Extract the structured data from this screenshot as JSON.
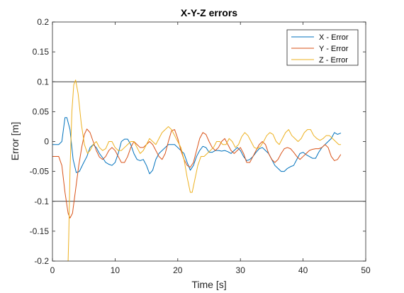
{
  "chart_data": {
    "type": "line",
    "title": "X-Y-Z errors",
    "xlabel": "Time [s]",
    "ylabel": "Error [m]",
    "xlim": [
      0,
      50
    ],
    "ylim": [
      -0.2,
      0.2
    ],
    "xticks": [
      0,
      10,
      20,
      30,
      40,
      50
    ],
    "xtick_labels": [
      "0",
      "10",
      "20",
      "30",
      "40",
      "50"
    ],
    "yticks": [
      -0.2,
      -0.15,
      -0.1,
      -0.05,
      0,
      0.05,
      0.1,
      0.15,
      0.2
    ],
    "ytick_labels": [
      "-0.2",
      "-0.15",
      "-0.1",
      "-0.05",
      "0",
      "0.05",
      "0.1",
      "0.15",
      "0.2"
    ],
    "reference_lines": [
      0.1,
      -0.1
    ],
    "grid": false,
    "legend_position": "top-right",
    "series": [
      {
        "name": "X - Error",
        "color": "#0072BD",
        "points": [
          [
            0,
            -0.005
          ],
          [
            1,
            -0.005
          ],
          [
            1.5,
            0.0
          ],
          [
            2,
            0.04
          ],
          [
            2.3,
            0.04
          ],
          [
            2.8,
            0.02
          ],
          [
            3.3,
            -0.03
          ],
          [
            3.8,
            -0.052
          ],
          [
            4.3,
            -0.05
          ],
          [
            5,
            -0.035
          ],
          [
            5.5,
            -0.025
          ],
          [
            6,
            -0.01
          ],
          [
            6.5,
            -0.005
          ],
          [
            7,
            -0.01
          ],
          [
            7.5,
            -0.02
          ],
          [
            8,
            -0.027
          ],
          [
            8.5,
            -0.035
          ],
          [
            9,
            -0.038
          ],
          [
            9.5,
            -0.04
          ],
          [
            10,
            -0.035
          ],
          [
            10.5,
            -0.02
          ],
          [
            11,
            0.0
          ],
          [
            11.5,
            0.004
          ],
          [
            12,
            0.004
          ],
          [
            12.5,
            -0.005
          ],
          [
            13,
            -0.02
          ],
          [
            13.5,
            -0.03
          ],
          [
            14,
            -0.032
          ],
          [
            14.5,
            -0.03
          ],
          [
            15,
            -0.04
          ],
          [
            15.5,
            -0.054
          ],
          [
            16,
            -0.048
          ],
          [
            16.5,
            -0.03
          ],
          [
            17,
            -0.02
          ],
          [
            17.5,
            -0.015
          ],
          [
            18,
            -0.01
          ],
          [
            18.5,
            -0.005
          ],
          [
            19,
            -0.005
          ],
          [
            19.5,
            -0.005
          ],
          [
            20,
            -0.01
          ],
          [
            20.5,
            -0.015
          ],
          [
            21,
            -0.02
          ],
          [
            21.5,
            -0.035
          ],
          [
            22,
            -0.048
          ],
          [
            22.5,
            -0.04
          ],
          [
            23,
            -0.025
          ],
          [
            23.5,
            -0.015
          ],
          [
            24,
            -0.008
          ],
          [
            24.5,
            -0.01
          ],
          [
            25,
            -0.018
          ],
          [
            25.5,
            -0.018
          ],
          [
            26,
            -0.015
          ],
          [
            26.5,
            -0.015
          ],
          [
            27,
            -0.016
          ],
          [
            27.5,
            -0.015
          ],
          [
            28,
            -0.017
          ],
          [
            28.5,
            -0.02
          ],
          [
            29,
            -0.015
          ],
          [
            29.5,
            -0.01
          ],
          [
            30,
            -0.015
          ],
          [
            30.5,
            -0.025
          ],
          [
            31,
            -0.032
          ],
          [
            31.5,
            -0.03
          ],
          [
            32,
            -0.025
          ],
          [
            32.5,
            -0.018
          ],
          [
            33,
            -0.012
          ],
          [
            33.5,
            -0.01
          ],
          [
            34,
            -0.015
          ],
          [
            34.5,
            -0.02
          ],
          [
            35,
            -0.03
          ],
          [
            35.5,
            -0.04
          ],
          [
            36,
            -0.045
          ],
          [
            36.5,
            -0.05
          ],
          [
            37,
            -0.05
          ],
          [
            37.5,
            -0.045
          ],
          [
            38,
            -0.042
          ],
          [
            38.5,
            -0.04
          ],
          [
            39,
            -0.03
          ],
          [
            39.5,
            -0.02
          ],
          [
            40,
            -0.018
          ],
          [
            40.5,
            -0.022
          ],
          [
            41,
            -0.025
          ],
          [
            41.5,
            -0.028
          ],
          [
            42,
            -0.028
          ],
          [
            42.5,
            -0.018
          ],
          [
            43,
            -0.01
          ],
          [
            43.5,
            -0.005
          ],
          [
            44,
            0.0
          ],
          [
            44.5,
            0.005
          ],
          [
            45,
            0.015
          ],
          [
            45.5,
            0.012
          ],
          [
            46,
            0.014
          ]
        ]
      },
      {
        "name": "Y - Error",
        "color": "#D95319",
        "points": [
          [
            0,
            -0.025
          ],
          [
            1,
            -0.025
          ],
          [
            1.5,
            -0.04
          ],
          [
            2,
            -0.085
          ],
          [
            2.5,
            -0.12
          ],
          [
            2.8,
            -0.128
          ],
          [
            3.2,
            -0.12
          ],
          [
            3.7,
            -0.08
          ],
          [
            4.2,
            -0.04
          ],
          [
            4.7,
            -0.008
          ],
          [
            5.1,
            0.012
          ],
          [
            5.5,
            0.021
          ],
          [
            6,
            0.015
          ],
          [
            6.5,
            0.0
          ],
          [
            7,
            -0.015
          ],
          [
            7.5,
            -0.026
          ],
          [
            8,
            -0.03
          ],
          [
            8.5,
            -0.025
          ],
          [
            9,
            -0.015
          ],
          [
            9.5,
            -0.01
          ],
          [
            10,
            -0.015
          ],
          [
            10.5,
            -0.025
          ],
          [
            11,
            -0.035
          ],
          [
            11.5,
            -0.035
          ],
          [
            12,
            -0.025
          ],
          [
            12.5,
            -0.01
          ],
          [
            13,
            0.0
          ],
          [
            13.5,
            -0.005
          ],
          [
            14,
            -0.01
          ],
          [
            14.5,
            -0.01
          ],
          [
            15,
            -0.005
          ],
          [
            15.5,
            0.0
          ],
          [
            16,
            -0.005
          ],
          [
            16.5,
            -0.015
          ],
          [
            17,
            -0.025
          ],
          [
            17.5,
            -0.03
          ],
          [
            18,
            -0.02
          ],
          [
            18.5,
            0.0
          ],
          [
            19,
            0.018
          ],
          [
            19.5,
            0.02
          ],
          [
            20,
            0.005
          ],
          [
            20.5,
            -0.015
          ],
          [
            21,
            -0.03
          ],
          [
            21.5,
            -0.04
          ],
          [
            22,
            -0.043
          ],
          [
            22.5,
            -0.035
          ],
          [
            23,
            -0.015
          ],
          [
            23.5,
            0.005
          ],
          [
            24,
            0.015
          ],
          [
            24.5,
            0.012
          ],
          [
            25,
            0.0
          ],
          [
            25.5,
            -0.01
          ],
          [
            26,
            -0.015
          ],
          [
            26.5,
            -0.01
          ],
          [
            27,
            0.0
          ],
          [
            27.5,
            0.005
          ],
          [
            28,
            -0.005
          ],
          [
            28.5,
            -0.015
          ],
          [
            29,
            -0.02
          ],
          [
            29.5,
            -0.015
          ],
          [
            30,
            -0.01
          ],
          [
            30.5,
            -0.02
          ],
          [
            31,
            -0.035
          ],
          [
            31.5,
            -0.035
          ],
          [
            32,
            -0.025
          ],
          [
            32.5,
            -0.015
          ],
          [
            33,
            -0.005
          ],
          [
            33.5,
            0.0
          ],
          [
            34,
            -0.005
          ],
          [
            34.5,
            -0.02
          ],
          [
            35,
            -0.03
          ],
          [
            35.5,
            -0.035
          ],
          [
            36,
            -0.03
          ],
          [
            36.5,
            -0.02
          ],
          [
            37,
            -0.012
          ],
          [
            37.5,
            -0.01
          ],
          [
            38,
            -0.012
          ],
          [
            38.5,
            -0.018
          ],
          [
            39,
            -0.025
          ],
          [
            39.5,
            -0.03
          ],
          [
            40,
            -0.025
          ],
          [
            40.5,
            -0.02
          ],
          [
            41,
            -0.015
          ],
          [
            41.5,
            -0.013
          ],
          [
            42,
            -0.012
          ],
          [
            42.5,
            -0.012
          ],
          [
            43,
            -0.01
          ],
          [
            43.5,
            -0.005
          ],
          [
            44,
            -0.01
          ],
          [
            44.5,
            -0.025
          ],
          [
            45,
            -0.032
          ],
          [
            45.5,
            -0.03
          ],
          [
            46,
            -0.022
          ]
        ]
      },
      {
        "name": "Z - Error",
        "color": "#EDB120",
        "points": [
          [
            2.5,
            -0.2
          ],
          [
            2.6,
            -0.16
          ],
          [
            2.8,
            -0.05
          ],
          [
            3.1,
            0.05
          ],
          [
            3.4,
            0.095
          ],
          [
            3.7,
            0.103
          ],
          [
            4.1,
            0.08
          ],
          [
            4.6,
            0.03
          ],
          [
            5.1,
            -0.005
          ],
          [
            5.6,
            -0.02
          ],
          [
            6,
            -0.015
          ],
          [
            6.5,
            -0.005
          ],
          [
            7,
            0.0
          ],
          [
            7.5,
            -0.01
          ],
          [
            8,
            -0.015
          ],
          [
            8.5,
            -0.012
          ],
          [
            9,
            0.0
          ],
          [
            9.5,
            0.0
          ],
          [
            10,
            -0.01
          ],
          [
            10.5,
            -0.015
          ],
          [
            11,
            -0.015
          ],
          [
            11.5,
            -0.01
          ],
          [
            12,
            -0.005
          ],
          [
            12.5,
            0.0
          ],
          [
            13,
            0.0
          ],
          [
            13.5,
            -0.01
          ],
          [
            14,
            -0.02
          ],
          [
            14.5,
            -0.015
          ],
          [
            15,
            -0.005
          ],
          [
            15.5,
            0.005
          ],
          [
            16,
            0.0
          ],
          [
            16.5,
            -0.005
          ],
          [
            17,
            0.005
          ],
          [
            17.5,
            0.015
          ],
          [
            18,
            0.02
          ],
          [
            18.5,
            0.025
          ],
          [
            19,
            0.02
          ],
          [
            19.5,
            0.01
          ],
          [
            20,
            0.0
          ],
          [
            20.5,
            -0.01
          ],
          [
            21,
            -0.03
          ],
          [
            21.5,
            -0.06
          ],
          [
            22,
            -0.085
          ],
          [
            22.3,
            -0.085
          ],
          [
            22.7,
            -0.065
          ],
          [
            23.2,
            -0.04
          ],
          [
            23.7,
            -0.025
          ],
          [
            24.2,
            -0.025
          ],
          [
            24.7,
            -0.02
          ],
          [
            25.2,
            -0.015
          ],
          [
            25.7,
            -0.01
          ],
          [
            26.2,
            0.0
          ],
          [
            26.7,
            0.0
          ],
          [
            27.2,
            -0.005
          ],
          [
            27.7,
            -0.005
          ],
          [
            28.2,
            0.005
          ],
          [
            28.7,
            0.0
          ],
          [
            29.2,
            -0.01
          ],
          [
            29.7,
            -0.005
          ],
          [
            30.2,
            0.008
          ],
          [
            30.7,
            0.015
          ],
          [
            31.2,
            0.01
          ],
          [
            31.7,
            0.0
          ],
          [
            32.2,
            -0.01
          ],
          [
            32.7,
            -0.012
          ],
          [
            33.2,
            -0.008
          ],
          [
            33.7,
            0.0
          ],
          [
            34.2,
            0.01
          ],
          [
            34.7,
            0.015
          ],
          [
            35.2,
            0.012
          ],
          [
            35.7,
            0.0
          ],
          [
            36.2,
            -0.005
          ],
          [
            36.7,
            0.005
          ],
          [
            37.2,
            0.015
          ],
          [
            37.7,
            0.02
          ],
          [
            38.2,
            0.01
          ],
          [
            38.7,
            0.005
          ],
          [
            39.2,
            0.0
          ],
          [
            39.7,
            0.005
          ],
          [
            40.2,
            0.015
          ],
          [
            40.7,
            0.02
          ],
          [
            41.2,
            0.02
          ],
          [
            41.7,
            0.01
          ],
          [
            42.2,
            0.005
          ],
          [
            42.7,
            0.002
          ],
          [
            43.2,
            0.005
          ],
          [
            43.7,
            0.01
          ],
          [
            44.2,
            0.01
          ],
          [
            44.7,
            0.005
          ],
          [
            45.2,
            0.0
          ],
          [
            45.7,
            -0.005
          ],
          [
            46,
            -0.005
          ]
        ]
      }
    ]
  }
}
